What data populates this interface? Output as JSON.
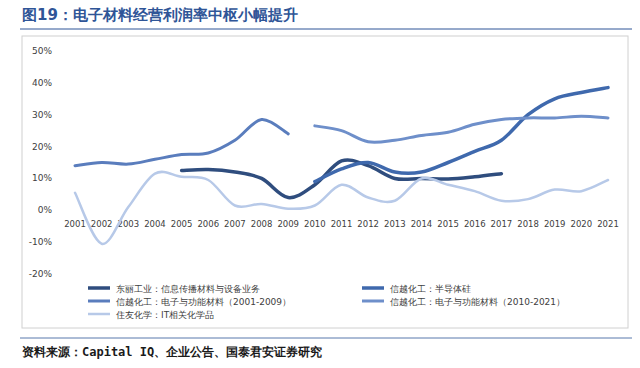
{
  "chart_data": {
    "type": "line",
    "title": "图19：电子材料经营利润率中枢小幅提升",
    "source": "资料来源：Capital IQ、企业公告、国泰君安证券研究",
    "categories": [
      "2001",
      "2002",
      "2003",
      "2004",
      "2005",
      "2006",
      "2007",
      "2008",
      "2009",
      "2010",
      "2011",
      "2012",
      "2013",
      "2014",
      "2015",
      "2016",
      "2017",
      "2018",
      "2019",
      "2020",
      "2021"
    ],
    "ylim": [
      -20,
      50
    ],
    "yticks": [
      {
        "value": -20,
        "label": "-20%"
      },
      {
        "value": -10,
        "label": "-10%"
      },
      {
        "value": 0,
        "label": "0%"
      },
      {
        "value": 10,
        "label": "10%"
      },
      {
        "value": 20,
        "label": "20%"
      },
      {
        "value": 30,
        "label": "30%"
      },
      {
        "value": 40,
        "label": "40%"
      },
      {
        "value": 50,
        "label": "50%"
      }
    ],
    "grid": false,
    "legend": "bottom",
    "series": [
      {
        "name": "东丽工业：信息传播材料与设备业务",
        "color": "#2f4d7e",
        "values": [
          null,
          null,
          null,
          null,
          12.5,
          12.8,
          12,
          10,
          4,
          8,
          15.5,
          14,
          10,
          10,
          9.8,
          10.5,
          11.5,
          null,
          null,
          null,
          null
        ]
      },
      {
        "name": "信越化工：半导体硅",
        "color": "#3f69ad",
        "values": [
          null,
          null,
          null,
          null,
          null,
          null,
          null,
          null,
          null,
          9,
          13,
          15,
          12,
          12,
          15,
          18.5,
          22,
          30,
          35,
          37,
          38.5
        ]
      },
      {
        "name": "信越化工：电子与功能材料（2001-2009）",
        "color": "#5a7dbd",
        "values": [
          14,
          15,
          14.5,
          16,
          17.5,
          18,
          22,
          28.5,
          24,
          null,
          null,
          null,
          null,
          null,
          null,
          null,
          null,
          null,
          null,
          null,
          null
        ]
      },
      {
        "name": "信越化工：电子与功能材料（2010-2021）",
        "color": "#6e8fca",
        "values": [
          null,
          null,
          null,
          null,
          null,
          null,
          null,
          null,
          null,
          26.5,
          25,
          21.5,
          22,
          23.5,
          24.5,
          27,
          28.5,
          29,
          29,
          29.5,
          29
        ]
      },
      {
        "name": "住友化学：IT相关化学品",
        "color": "#b7c9e8",
        "values": [
          5.5,
          -10.5,
          1,
          11.5,
          10.5,
          9.5,
          1.5,
          2,
          0.5,
          1.5,
          8,
          4,
          3,
          10,
          8,
          6,
          3,
          3.5,
          6.5,
          6,
          9.5
        ]
      }
    ]
  }
}
